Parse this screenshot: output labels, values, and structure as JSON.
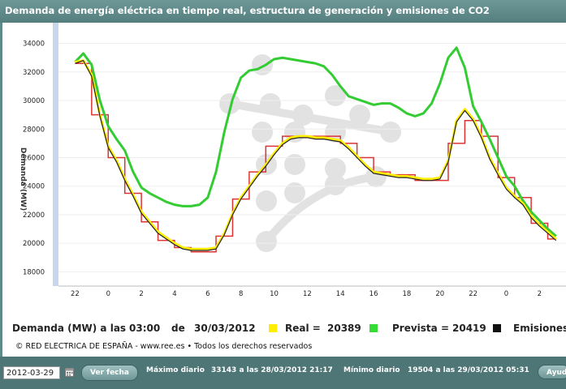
{
  "header": {
    "title": "Demanda de energía eléctrica en tiempo real, estructura de generación y emisiones de CO2"
  },
  "chart_data": {
    "type": "line",
    "ylabel": "Demanda (MW)",
    "ylim": [
      17000,
      35000
    ],
    "yticks": [
      18000,
      20000,
      22000,
      24000,
      26000,
      28000,
      30000,
      32000,
      34000
    ],
    "xticks": [
      "22",
      "0",
      "2",
      "4",
      "6",
      "8",
      "10",
      "12",
      "14",
      "16",
      "18",
      "20",
      "22",
      "0",
      "2"
    ],
    "x_hours": [
      -2,
      -1.5,
      -1,
      -0.5,
      0,
      0.5,
      1,
      1.5,
      2,
      2.5,
      3,
      3.5,
      4,
      4.5,
      5,
      5.5,
      6,
      6.5,
      7,
      7.5,
      8,
      8.5,
      9,
      9.5,
      10,
      10.5,
      11,
      11.5,
      12,
      12.5,
      13,
      13.5,
      14,
      14.5,
      15,
      15.5,
      16,
      16.5,
      17,
      17.5,
      18,
      18.5,
      19,
      19.5,
      20,
      20.5,
      21,
      21.5,
      22,
      22.5,
      23,
      23.5,
      24,
      24.5,
      25,
      25.5,
      26,
      26.5,
      27
    ],
    "series": [
      {
        "name": "Prevista",
        "color": "#33cc33",
        "values": [
          32700,
          33300,
          32500,
          30000,
          28200,
          27300,
          26500,
          25000,
          23900,
          23500,
          23200,
          22900,
          22700,
          22600,
          22600,
          22700,
          23200,
          25000,
          27800,
          30100,
          31600,
          32100,
          32200,
          32500,
          32900,
          33000,
          32900,
          32800,
          32700,
          32600,
          32400,
          31800,
          31000,
          30300,
          30100,
          29900,
          29700,
          29800,
          29800,
          29500,
          29100,
          28900,
          29100,
          29800,
          31200,
          33000,
          33700,
          32300,
          29600,
          28500,
          27300,
          26000,
          24700,
          24000,
          23000,
          22200,
          21600,
          21000,
          20500
        ]
      },
      {
        "name": "Real",
        "color": "#ffee00",
        "values": [
          32700,
          32800,
          31800,
          29000,
          26800,
          25800,
          24500,
          23400,
          22200,
          21500,
          20800,
          20400,
          20000,
          19700,
          19600,
          19600,
          19600,
          19700,
          20700,
          22100,
          23200,
          24000,
          24800,
          25500,
          26300,
          27000,
          27400,
          27500,
          27500,
          27400,
          27400,
          27300,
          27200,
          26700,
          26100,
          25500,
          25000,
          24900,
          24800,
          24700,
          24700,
          24600,
          24500,
          24500,
          24600,
          25800,
          28600,
          29400,
          28700,
          27500,
          26000,
          24900,
          23900,
          23300,
          22800,
          21900,
          21300,
          20800,
          20300
        ]
      },
      {
        "name": "Emisiones",
        "color": "#222222",
        "values": [
          32600,
          32800,
          31700,
          28900,
          26700,
          25700,
          24400,
          23300,
          22100,
          21400,
          20700,
          20300,
          19900,
          19600,
          19500,
          19500,
          19500,
          19600,
          20600,
          22000,
          23100,
          23900,
          24700,
          25400,
          26200,
          26900,
          27300,
          27400,
          27400,
          27300,
          27300,
          27200,
          27100,
          26600,
          26000,
          25400,
          24900,
          24800,
          24700,
          24600,
          24600,
          24500,
          24400,
          24400,
          24500,
          25700,
          28500,
          29300,
          28600,
          27400,
          25900,
          24800,
          23800,
          23200,
          22700,
          21800,
          21200,
          20700,
          20200
        ]
      }
    ],
    "program_steps": [
      32600,
      32600,
      29000,
      29000,
      26000,
      26000,
      23500,
      23500,
      21500,
      21500,
      20200,
      20200,
      19700,
      19700,
      19400,
      19400,
      19400,
      20500,
      20500,
      23100,
      23100,
      25000,
      25000,
      26800,
      26800,
      27500,
      27500,
      27500,
      27500,
      27500,
      27500,
      27500,
      27000,
      27000,
      26000,
      26000,
      25000,
      25000,
      24800,
      24800,
      24800,
      24400,
      24400,
      24400,
      24400,
      27000,
      27000,
      28600,
      28600,
      27500,
      27500,
      24600,
      24600,
      23200,
      23200,
      21400,
      21400,
      20300,
      20300
    ],
    "program_color": "#dd3333"
  },
  "info": {
    "demanda_label": "Demanda (MW) a las",
    "time": "03:00",
    "de": "de",
    "date": "30/03/2012",
    "real_label": "Real =",
    "real_value": "20389",
    "prevista_label": "Prevista =",
    "prevista_value": "20419",
    "emisiones_label": "Emisiones C",
    "real_color": "#ffee00",
    "prevista_color": "#33dd33",
    "emisiones_color": "#111111"
  },
  "copyright": "© RED ELECTRICA DE ESPAÑA - www.ree.es • Todos los derechos reservados",
  "footer": {
    "date_value": "2012-03-29",
    "ver_fecha": "Ver fecha",
    "maximo_label": "Máximo diario",
    "maximo_value": "33143 a las 28/03/2012 21:17",
    "minimo_label": "Mínimo diario",
    "minimo_value": "19504 a las 29/03/2012 05:31",
    "ayuda": "Ayud"
  }
}
